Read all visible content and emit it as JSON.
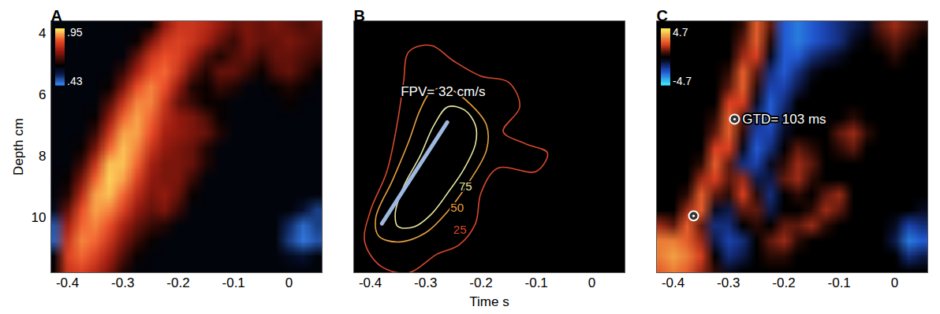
{
  "chart_data": [
    {
      "type": "heatmap",
      "title": "A",
      "ylabel": "Depth cm",
      "xlim": [
        -0.43,
        0.06
      ],
      "ylim": [
        3.6,
        11.8
      ],
      "xticks": [
        -0.4,
        -0.3,
        -0.2,
        -0.1,
        0
      ],
      "yticks": [
        4,
        6,
        8,
        10
      ],
      "x": [
        -0.425,
        -0.4,
        -0.375,
        -0.35,
        -0.325,
        -0.3,
        -0.275,
        -0.25,
        -0.225,
        -0.2,
        -0.175,
        -0.15,
        -0.125,
        -0.1,
        -0.075,
        -0.05,
        -0.025,
        0,
        0.025,
        0.05
      ],
      "y": [
        3.75,
        4.25,
        4.75,
        5.25,
        5.75,
        6.25,
        6.75,
        7.25,
        7.75,
        8.25,
        8.75,
        9.25,
        9.75,
        10.25,
        10.75,
        11.25,
        11.75
      ],
      "values": [
        [
          0.6,
          0.6,
          0.6,
          0.6,
          0.6,
          0.6,
          0.6,
          0.62,
          0.74,
          0.8,
          0.8,
          0.78,
          0.74,
          0.7,
          0.72,
          0.7,
          0.72,
          0.7,
          0.68,
          0.7
        ],
        [
          0.6,
          0.6,
          0.6,
          0.6,
          0.6,
          0.6,
          0.62,
          0.72,
          0.8,
          0.82,
          0.8,
          0.76,
          0.7,
          0.66,
          0.72,
          0.7,
          0.7,
          0.72,
          0.7,
          0.68
        ],
        [
          0.6,
          0.6,
          0.6,
          0.6,
          0.6,
          0.6,
          0.7,
          0.8,
          0.84,
          0.82,
          0.76,
          0.68,
          0.64,
          0.68,
          0.7,
          0.66,
          0.7,
          0.7,
          0.68,
          0.66
        ],
        [
          0.6,
          0.6,
          0.6,
          0.6,
          0.6,
          0.66,
          0.76,
          0.84,
          0.86,
          0.8,
          0.7,
          0.64,
          0.7,
          0.7,
          0.66,
          0.62,
          0.68,
          0.7,
          0.66,
          0.62
        ],
        [
          0.6,
          0.6,
          0.6,
          0.6,
          0.62,
          0.72,
          0.84,
          0.88,
          0.84,
          0.74,
          0.64,
          0.62,
          0.66,
          0.64,
          0.6,
          0.6,
          0.62,
          0.64,
          0.62,
          0.6
        ],
        [
          0.6,
          0.6,
          0.6,
          0.6,
          0.68,
          0.8,
          0.88,
          0.88,
          0.8,
          0.7,
          0.66,
          0.62,
          0.62,
          0.6,
          0.6,
          0.6,
          0.6,
          0.62,
          0.6,
          0.6
        ],
        [
          0.6,
          0.6,
          0.6,
          0.62,
          0.74,
          0.86,
          0.9,
          0.86,
          0.78,
          0.74,
          0.72,
          0.68,
          0.62,
          0.6,
          0.6,
          0.6,
          0.6,
          0.6,
          0.6,
          0.6
        ],
        [
          0.6,
          0.6,
          0.6,
          0.66,
          0.8,
          0.9,
          0.9,
          0.84,
          0.76,
          0.74,
          0.72,
          0.7,
          0.64,
          0.6,
          0.6,
          0.6,
          0.6,
          0.6,
          0.6,
          0.6
        ],
        [
          0.6,
          0.6,
          0.62,
          0.72,
          0.86,
          0.92,
          0.88,
          0.8,
          0.74,
          0.72,
          0.7,
          0.64,
          0.6,
          0.6,
          0.6,
          0.6,
          0.6,
          0.6,
          0.6,
          0.6
        ],
        [
          0.6,
          0.6,
          0.66,
          0.8,
          0.92,
          0.92,
          0.86,
          0.76,
          0.72,
          0.72,
          0.7,
          0.64,
          0.6,
          0.6,
          0.6,
          0.6,
          0.6,
          0.6,
          0.6,
          0.6
        ],
        [
          0.6,
          0.62,
          0.72,
          0.86,
          0.93,
          0.9,
          0.82,
          0.74,
          0.72,
          0.72,
          0.66,
          0.6,
          0.6,
          0.6,
          0.6,
          0.6,
          0.6,
          0.6,
          0.6,
          0.6
        ],
        [
          0.6,
          0.64,
          0.78,
          0.9,
          0.92,
          0.86,
          0.78,
          0.72,
          0.74,
          0.7,
          0.62,
          0.6,
          0.6,
          0.6,
          0.6,
          0.6,
          0.6,
          0.6,
          0.6,
          0.6
        ],
        [
          0.58,
          0.7,
          0.84,
          0.9,
          0.88,
          0.82,
          0.74,
          0.7,
          0.72,
          0.66,
          0.6,
          0.6,
          0.6,
          0.6,
          0.6,
          0.6,
          0.6,
          0.6,
          0.56,
          0.5
        ],
        [
          0.48,
          0.76,
          0.86,
          0.88,
          0.84,
          0.76,
          0.7,
          0.66,
          0.64,
          0.6,
          0.6,
          0.6,
          0.6,
          0.6,
          0.6,
          0.6,
          0.6,
          0.52,
          0.46,
          0.5
        ],
        [
          0.47,
          0.8,
          0.88,
          0.86,
          0.8,
          0.72,
          0.66,
          0.62,
          0.6,
          0.6,
          0.6,
          0.6,
          0.6,
          0.6,
          0.6,
          0.6,
          0.6,
          0.5,
          0.45,
          0.48
        ],
        [
          0.6,
          0.82,
          0.86,
          0.82,
          0.76,
          0.68,
          0.62,
          0.6,
          0.6,
          0.6,
          0.6,
          0.6,
          0.6,
          0.6,
          0.6,
          0.6,
          0.6,
          0.58,
          0.56,
          0.6
        ],
        [
          0.62,
          0.8,
          0.82,
          0.78,
          0.72,
          0.64,
          0.6,
          0.6,
          0.6,
          0.6,
          0.6,
          0.6,
          0.6,
          0.6,
          0.6,
          0.6,
          0.6,
          0.6,
          0.6,
          0.6
        ]
      ],
      "colorbar": {
        "range": [
          0.43,
          0.95
        ],
        "ticks": [
          {
            "value": 0.95,
            "label": ".95"
          },
          {
            "value": 0.43,
            "label": ".43"
          }
        ]
      }
    },
    {
      "type": "contour",
      "title": "B",
      "xlabel": "Time s",
      "tick_labels": "x",
      "xlim": [
        -0.43,
        0.06
      ],
      "ylim": [
        3.6,
        11.8
      ],
      "xticks": [
        -0.4,
        -0.3,
        -0.2,
        -0.1,
        0
      ],
      "contours": [
        {
          "level": 75,
          "color": "#e6e6a0",
          "label_x": -0.24,
          "label_y": 9.0,
          "x": [
            -0.26,
            -0.23,
            -0.21,
            -0.21,
            -0.23,
            -0.26,
            -0.29,
            -0.32,
            -0.35,
            -0.355,
            -0.34,
            -0.31,
            -0.285
          ],
          "y": [
            6.4,
            6.5,
            7.0,
            7.6,
            8.4,
            9.2,
            9.9,
            10.3,
            10.3,
            9.9,
            9.0,
            8.0,
            7.0
          ]
        },
        {
          "level": 50,
          "color": "#e8a040",
          "label_x": -0.255,
          "label_y": 9.7,
          "x": [
            -0.29,
            -0.26,
            -0.22,
            -0.19,
            -0.19,
            -0.22,
            -0.26,
            -0.3,
            -0.35,
            -0.385,
            -0.39,
            -0.36,
            -0.33,
            -0.31
          ],
          "y": [
            5.9,
            5.8,
            6.3,
            7.0,
            7.8,
            8.8,
            9.8,
            10.5,
            10.8,
            10.6,
            10.0,
            8.8,
            7.5,
            6.5
          ]
        },
        {
          "level": 25,
          "color": "#d8482c",
          "label_x": -0.25,
          "label_y": 10.4,
          "x": [
            -0.33,
            -0.29,
            -0.25,
            -0.2,
            -0.15,
            -0.13,
            -0.16,
            -0.12,
            -0.08,
            -0.1,
            -0.17,
            -0.2,
            -0.21,
            -0.24,
            -0.28,
            -0.33,
            -0.38,
            -0.41,
            -0.4,
            -0.37,
            -0.35,
            -0.34
          ],
          "y": [
            4.6,
            4.4,
            4.9,
            5.4,
            5.6,
            6.4,
            7.2,
            7.6,
            7.9,
            8.5,
            8.4,
            9.2,
            10.2,
            10.9,
            11.2,
            11.8,
            11.6,
            10.8,
            9.8,
            8.5,
            6.8,
            5.6
          ]
        }
      ],
      "line": {
        "x": [
          -0.379,
          -0.261
        ],
        "y": [
          10.2,
          6.9
        ],
        "color": "#9fb8e0"
      },
      "annotations": [
        {
          "text": "FPV= 32 cm/s",
          "x": -0.345,
          "y": 5.9,
          "color": "#ffffff"
        }
      ]
    },
    {
      "type": "heatmap",
      "title": "C",
      "tick_labels": "x",
      "xlim": [
        -0.43,
        0.06
      ],
      "ylim": [
        3.6,
        11.8
      ],
      "xticks": [
        -0.4,
        -0.3,
        -0.2,
        -0.1,
        0
      ],
      "x": [
        -0.425,
        -0.4,
        -0.375,
        -0.35,
        -0.325,
        -0.3,
        -0.275,
        -0.25,
        -0.225,
        -0.2,
        -0.175,
        -0.15,
        -0.125,
        -0.1,
        -0.075,
        -0.05,
        -0.025,
        0,
        0.025,
        0.05
      ],
      "y": [
        3.75,
        4.25,
        4.75,
        5.25,
        5.75,
        6.25,
        6.75,
        7.25,
        7.75,
        8.25,
        8.75,
        9.25,
        9.75,
        10.25,
        10.75,
        11.25,
        11.75
      ],
      "values": [
        [
          0,
          0,
          0,
          0,
          0,
          0,
          0.5,
          2.5,
          1,
          -2.5,
          -3,
          -2.5,
          -2,
          -1.5,
          -1,
          -0.5,
          1,
          1.5,
          1,
          0.5
        ],
        [
          0,
          0,
          0,
          0,
          0,
          0,
          1,
          2.5,
          0.5,
          -2.5,
          -3,
          -2.5,
          -2,
          -1.5,
          -0.5,
          0,
          0.5,
          1,
          0.5,
          0
        ],
        [
          0,
          0,
          0,
          0,
          0,
          0,
          1.5,
          2,
          -0.5,
          -2.5,
          -2.5,
          -1.5,
          -1,
          -0.5,
          0,
          0,
          0,
          0.5,
          0,
          0
        ],
        [
          0,
          0,
          0,
          0,
          0,
          0.5,
          2.5,
          1,
          -1.5,
          -2.5,
          -1.5,
          -0.5,
          0,
          0,
          0,
          0,
          0,
          0,
          0,
          0
        ],
        [
          0,
          0,
          0,
          0,
          0,
          1,
          2.5,
          0.5,
          -2,
          -2,
          -1,
          0,
          0,
          0,
          0,
          0,
          0,
          0,
          0,
          0
        ],
        [
          0,
          0,
          0,
          0,
          0,
          2,
          2,
          -0.5,
          -2.5,
          -1.5,
          0,
          0,
          0,
          0,
          0,
          0,
          0,
          0,
          0,
          0
        ],
        [
          0,
          0,
          0,
          0,
          0.5,
          2.5,
          1,
          -1.5,
          -2.5,
          -1,
          0,
          0,
          0,
          0,
          0.5,
          0,
          0,
          0,
          0,
          0
        ],
        [
          0,
          0,
          0,
          0,
          1,
          2.5,
          0.5,
          -2,
          -2,
          -0.5,
          0,
          0,
          0,
          1,
          1.5,
          0.5,
          0,
          0,
          0,
          0
        ],
        [
          0,
          0,
          0,
          0,
          2,
          2,
          -0.5,
          -2.5,
          -1.5,
          0,
          1,
          0.5,
          0,
          0.5,
          1,
          0,
          0,
          0,
          0,
          0
        ],
        [
          0,
          0,
          0,
          0.5,
          2.5,
          1,
          -1.5,
          -2,
          -0.5,
          0.5,
          1.5,
          1,
          0,
          0,
          0,
          0,
          0,
          0,
          0,
          0
        ],
        [
          0,
          0,
          0,
          1.5,
          2,
          1,
          1.5,
          -1,
          -1,
          1,
          1.5,
          0.5,
          0,
          0,
          0,
          0,
          0,
          0,
          0,
          0
        ],
        [
          0,
          0,
          0.5,
          2.5,
          1,
          0.5,
          2,
          0.5,
          -1.5,
          0,
          0.5,
          0,
          1,
          1.5,
          0,
          0,
          0,
          0,
          0,
          0
        ],
        [
          0,
          0,
          1.5,
          2.5,
          -0.5,
          -1,
          1,
          1,
          -1,
          0,
          0,
          0.5,
          1.5,
          1,
          0,
          0,
          0,
          0,
          0,
          -0.5
        ],
        [
          1.5,
          1,
          2.5,
          1,
          -1.5,
          -1.5,
          0,
          0.5,
          0,
          1,
          1,
          1.5,
          0.5,
          0,
          0,
          0,
          0,
          -0.5,
          -2,
          -1.5
        ],
        [
          3,
          3,
          2.5,
          1.5,
          -1,
          -2,
          -1.5,
          0,
          1,
          1.5,
          0.5,
          0,
          0,
          0,
          0,
          0,
          0,
          -1,
          -3,
          -2.5
        ],
        [
          3,
          3.5,
          3,
          2,
          0,
          -1.5,
          -1,
          0,
          0.5,
          0.5,
          0,
          0,
          0,
          0,
          0,
          0,
          0,
          0,
          -1.5,
          -1
        ],
        [
          2.5,
          3,
          2.5,
          1.5,
          0.5,
          -0.5,
          0,
          0,
          0,
          0,
          0,
          0,
          0,
          0,
          0,
          0,
          0,
          0,
          0,
          0
        ]
      ],
      "colorbar": {
        "range": [
          -4.7,
          4.7
        ],
        "ticks": [
          4.7,
          -4.7
        ]
      },
      "markers": {
        "x": [
          -0.289,
          -0.363
        ],
        "y": [
          6.8,
          9.95
        ],
        "marker": "circle",
        "color": "#ffffff"
      },
      "annotations": [
        {
          "text": "GTD= 103 ms",
          "x": -0.275,
          "y": 6.8,
          "color": "#ffffff"
        }
      ]
    }
  ]
}
